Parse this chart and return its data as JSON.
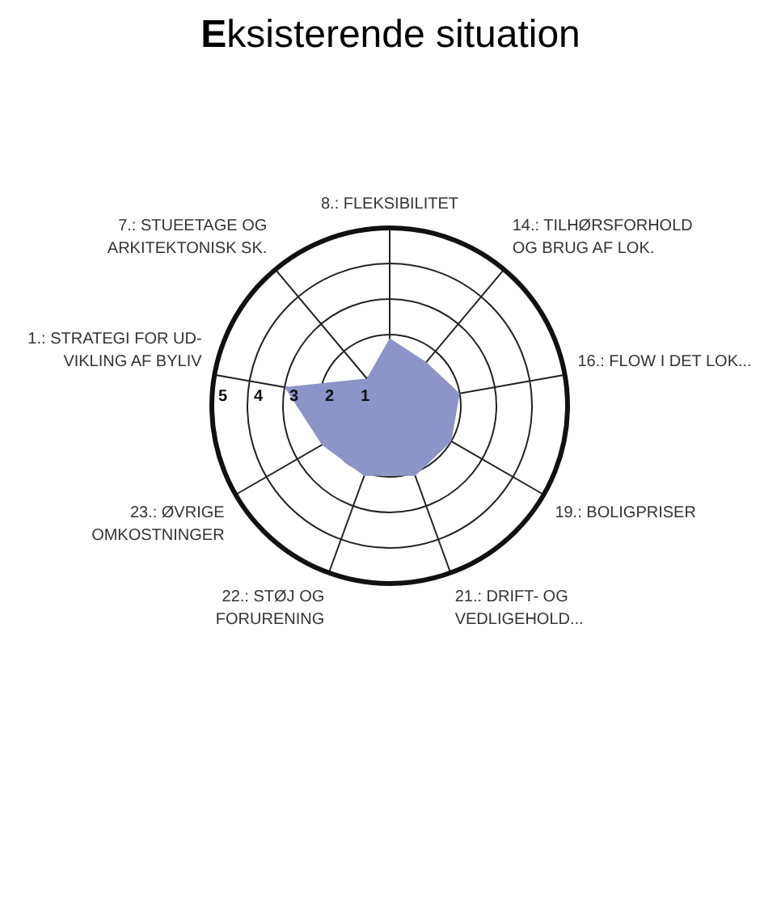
{
  "chart_data": {
    "type": "radar",
    "title": "Eksisterende situation",
    "categories": [
      "8.: FLEKSIBILITET",
      "14.: TILHØRSFORHOLD\nOG BRUG AF LOK.",
      "16.: FLOW I DET LOK...",
      "19.: BOLIGPRISER",
      "21.: DRIFT- OG\nVEDLIGEHOLD...",
      "22.: STØJ OG\nFORURENING",
      "23.: ØVRIGE\nOMKOSTNINGER",
      "1.: STRATEGI FOR UD-\nVIKLING AF BYLIV",
      "7.: STUEETAGE OG\nARKITEKTONISK SK."
    ],
    "series": [
      {
        "color": "#8c94c8",
        "values": [
          1.9,
          1.6,
          2.0,
          2.0,
          2.1,
          2.1,
          2.2,
          3.0,
          1.0
        ]
      }
    ],
    "ylim": [
      0,
      5
    ],
    "yticks": [
      1,
      2,
      3,
      4,
      5
    ],
    "grid": true
  }
}
